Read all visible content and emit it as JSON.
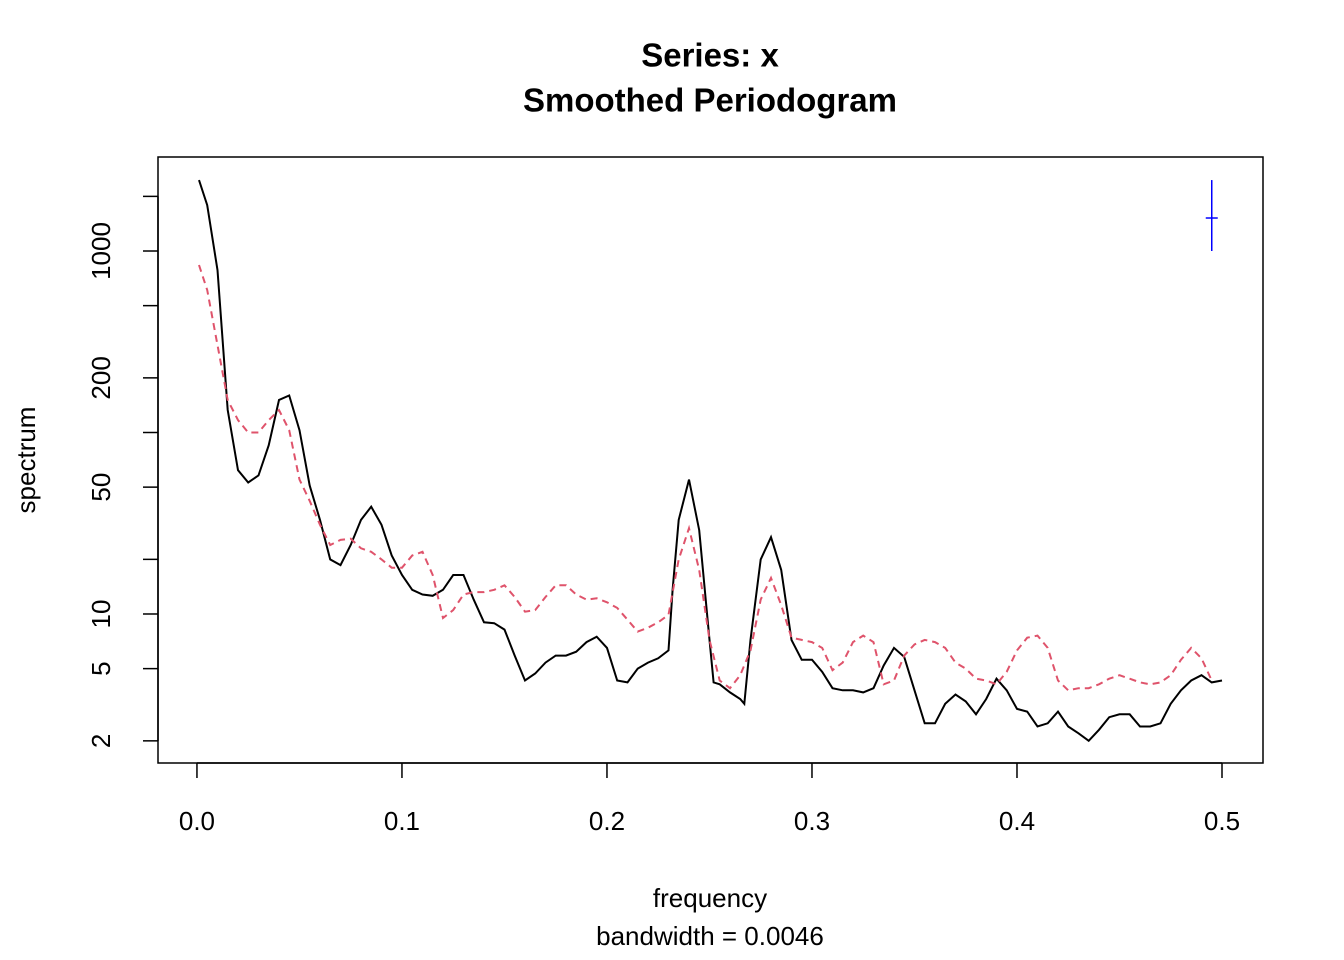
{
  "chart_data": {
    "type": "line",
    "title": "Series: x",
    "subtitle": "Smoothed Periodogram",
    "x_label": "frequency",
    "x_sublabel": "bandwidth = 0.0046",
    "y_label": "spectrum",
    "ylog": true,
    "xlim": [
      -0.019,
      0.52
    ],
    "ylim": [
      1.51,
      3296
    ],
    "xticks": [
      {
        "value": 0,
        "label": "0.0"
      },
      0.1,
      0.2,
      0.3,
      0.4,
      0.5
    ],
    "yticks": [
      2,
      5,
      10,
      50,
      200,
      1000
    ],
    "minor_yticks": [
      20,
      100,
      500,
      2000
    ],
    "series": [
      {
        "color": "#000000",
        "dash": false,
        "x": [
          0.001,
          0.005,
          0.01,
          0.015,
          0.02,
          0.025,
          0.03,
          0.035,
          0.04,
          0.045,
          0.05,
          0.055,
          0.06,
          0.065,
          0.07,
          0.075,
          0.08,
          0.085,
          0.09,
          0.095,
          0.1,
          0.105,
          0.11,
          0.115,
          0.12,
          0.125,
          0.13,
          0.135,
          0.14,
          0.145,
          0.15,
          0.155,
          0.16,
          0.165,
          0.17,
          0.175,
          0.18,
          0.185,
          0.19,
          0.195,
          0.2,
          0.205,
          0.21,
          0.215,
          0.22,
          0.225,
          0.23,
          0.232,
          0.235,
          0.24,
          0.245,
          0.25,
          0.252,
          0.255,
          0.26,
          0.265,
          0.267,
          0.27,
          0.275,
          0.28,
          0.285,
          0.29,
          0.295,
          0.3,
          0.305,
          0.31,
          0.315,
          0.32,
          0.325,
          0.33,
          0.335,
          0.34,
          0.345,
          0.35,
          0.355,
          0.36,
          0.365,
          0.37,
          0.375,
          0.38,
          0.385,
          0.39,
          0.395,
          0.4,
          0.405,
          0.41,
          0.415,
          0.42,
          0.425,
          0.43,
          0.435,
          0.44,
          0.445,
          0.45,
          0.455,
          0.46,
          0.465,
          0.47,
          0.475,
          0.48,
          0.485,
          0.49,
          0.495,
          0.5
        ],
        "values": [
          2460,
          1790,
          785,
          133,
          62,
          53,
          58,
          85,
          151,
          160,
          103,
          51,
          33,
          20,
          18.6,
          24,
          33,
          39,
          31,
          21,
          16.4,
          13.6,
          12.8,
          12.6,
          13.6,
          16.4,
          16.4,
          12.0,
          9.0,
          8.9,
          8.2,
          5.9,
          4.3,
          4.7,
          5.4,
          5.9,
          5.9,
          6.2,
          7.0,
          7.5,
          6.5,
          4.3,
          4.2,
          5.0,
          5.4,
          5.7,
          6.3,
          13.6,
          33,
          55,
          29,
          7.2,
          4.2,
          4.1,
          3.7,
          3.4,
          3.2,
          7.2,
          20,
          26.5,
          17.5,
          7.2,
          5.6,
          5.6,
          4.8,
          3.9,
          3.8,
          3.8,
          3.7,
          3.9,
          5.2,
          6.5,
          5.8,
          3.8,
          2.5,
          2.5,
          3.2,
          3.6,
          3.3,
          2.8,
          3.4,
          4.4,
          3.8,
          3.0,
          2.9,
          2.4,
          2.5,
          2.9,
          2.4,
          2.2,
          2.0,
          2.3,
          2.7,
          2.8,
          2.8,
          2.4,
          2.4,
          2.5,
          3.2,
          3.8,
          4.3,
          4.6,
          4.2,
          4.3
        ]
      },
      {
        "color": "#df536b",
        "dash": true,
        "x": [
          0.001,
          0.005,
          0.01,
          0.015,
          0.02,
          0.025,
          0.03,
          0.035,
          0.04,
          0.045,
          0.05,
          0.055,
          0.06,
          0.065,
          0.07,
          0.075,
          0.08,
          0.085,
          0.09,
          0.095,
          0.1,
          0.105,
          0.11,
          0.115,
          0.12,
          0.125,
          0.13,
          0.135,
          0.14,
          0.145,
          0.15,
          0.155,
          0.16,
          0.165,
          0.17,
          0.175,
          0.18,
          0.185,
          0.19,
          0.195,
          0.2,
          0.205,
          0.21,
          0.215,
          0.22,
          0.225,
          0.23,
          0.235,
          0.24,
          0.245,
          0.25,
          0.255,
          0.26,
          0.265,
          0.27,
          0.275,
          0.28,
          0.285,
          0.29,
          0.295,
          0.3,
          0.305,
          0.31,
          0.315,
          0.32,
          0.325,
          0.33,
          0.335,
          0.34,
          0.345,
          0.35,
          0.355,
          0.36,
          0.365,
          0.37,
          0.375,
          0.38,
          0.385,
          0.39,
          0.395,
          0.4,
          0.405,
          0.41,
          0.415,
          0.42,
          0.425,
          0.43,
          0.435,
          0.44,
          0.445,
          0.45,
          0.455,
          0.46,
          0.465,
          0.47,
          0.475,
          0.48,
          0.485,
          0.49,
          0.495
        ],
        "values": [
          837,
          610,
          303,
          151,
          117,
          100,
          100,
          117,
          133,
          103,
          55,
          42,
          31,
          24,
          25.6,
          26,
          23,
          22,
          20,
          18,
          18,
          21,
          22,
          16.4,
          9.5,
          10.5,
          12.8,
          13.2,
          13.2,
          13.6,
          14.4,
          12.4,
          10.3,
          10.5,
          12.4,
          14.4,
          14.4,
          12.8,
          12.0,
          12.2,
          11.6,
          10.8,
          9.3,
          8.0,
          8.4,
          9.0,
          9.9,
          20,
          29.7,
          17.5,
          7.2,
          4.3,
          3.9,
          4.6,
          6.3,
          12,
          15.8,
          11.2,
          7.4,
          7.2,
          7.0,
          6.5,
          4.9,
          5.4,
          7.0,
          7.6,
          7.0,
          4.1,
          4.3,
          5.9,
          6.8,
          7.2,
          7.0,
          6.5,
          5.4,
          5.0,
          4.4,
          4.3,
          4.1,
          4.8,
          6.3,
          7.4,
          7.6,
          6.5,
          4.3,
          3.8,
          3.9,
          3.9,
          4.1,
          4.4,
          4.6,
          4.4,
          4.2,
          4.1,
          4.2,
          4.6,
          5.6,
          6.5,
          5.7,
          4.3
        ]
      }
    ],
    "ci_bar": {
      "color": "#0000ff",
      "x": 0.495,
      "center": 1520,
      "lower": 1000,
      "upper": 2460
    }
  }
}
